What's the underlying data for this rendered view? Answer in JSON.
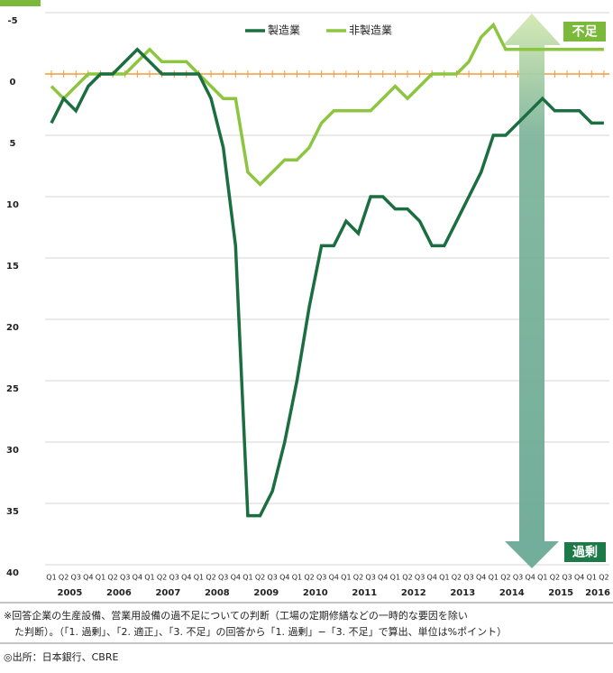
{
  "chart_data": {
    "type": "line",
    "categories": [
      "Q1",
      "Q2",
      "Q3",
      "Q4",
      "Q1",
      "Q2",
      "Q3",
      "Q4",
      "Q1",
      "Q2",
      "Q3",
      "Q4",
      "Q1",
      "Q2",
      "Q3",
      "Q4",
      "Q1",
      "Q2",
      "Q3",
      "Q4",
      "Q1",
      "Q2",
      "Q3",
      "Q4",
      "Q1",
      "Q2",
      "Q3",
      "Q4",
      "Q1",
      "Q2",
      "Q3",
      "Q4",
      "Q1",
      "Q2",
      "Q3",
      "Q4",
      "Q1",
      "Q2",
      "Q3",
      "Q4",
      "Q1",
      "Q2",
      "Q3",
      "Q4",
      "Q1",
      "Q2"
    ],
    "years": [
      "2005",
      "2006",
      "2007",
      "2008",
      "2009",
      "2010",
      "2011",
      "2012",
      "2013",
      "2014",
      "2015",
      "2016"
    ],
    "series": [
      {
        "name": "製造業",
        "color": "#1b6e40",
        "values": [
          4,
          2,
          3,
          1,
          0,
          0,
          -1,
          -2,
          -1,
          0,
          0,
          0,
          0,
          2,
          6,
          14,
          36,
          36,
          34,
          30,
          25,
          19,
          14,
          14,
          12,
          13,
          10,
          10,
          11,
          11,
          12,
          14,
          14,
          12,
          10,
          8,
          5,
          5,
          4,
          3,
          2,
          3,
          3,
          3,
          4,
          4
        ]
      },
      {
        "name": "非製造業",
        "color": "#8cc63f",
        "values": [
          1,
          2,
          1,
          0,
          0,
          0,
          0,
          -1,
          -2,
          -1,
          -1,
          -1,
          0,
          1,
          2,
          2,
          8,
          9,
          8,
          7,
          7,
          6,
          4,
          3,
          3,
          3,
          3,
          2,
          1,
          2,
          1,
          0,
          0,
          0,
          -1,
          -3,
          -4,
          -2,
          -2,
          -2,
          -2,
          -2,
          -2,
          -2,
          -2,
          -2
        ]
      }
    ],
    "ylim": [
      -5,
      40
    ],
    "y_inverted": true,
    "yticks": [
      -5,
      0,
      5,
      10,
      15,
      20,
      25,
      30,
      35,
      40
    ],
    "grid": true,
    "annotations": {
      "shortage": "不足",
      "excess": "過剰"
    },
    "notes": [
      "※回答企業の生産設備、営業用設備の過不足についての判断（工場の定期修繕などの一時的な要因を除い",
      "た判断）。（「1. 過剰」、「2. 適正」、「3. 不足」の回答から「1. 過剰」−「3. 不足」で算出、単位は%ポイント）"
    ],
    "source": "◎出所：日本銀行、CBRE"
  }
}
